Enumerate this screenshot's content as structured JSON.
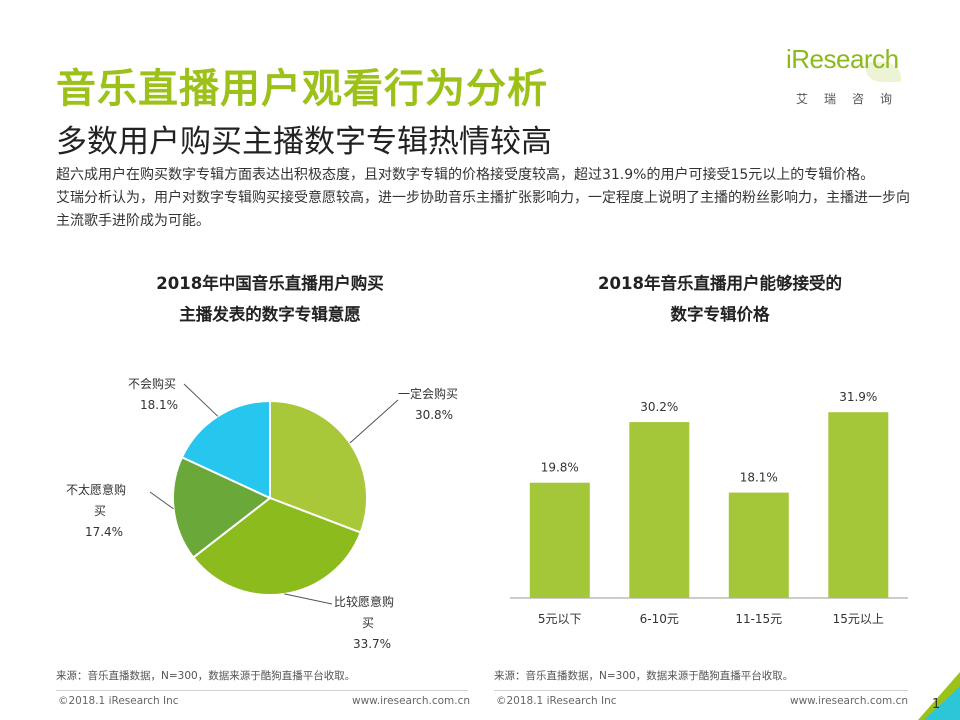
{
  "header": {
    "title": "音乐直播用户观看行为分析",
    "subtitle": "多数用户购买主播数字专辑热情较高"
  },
  "logo": {
    "word": "iResearch",
    "cn": "艾瑞咨询"
  },
  "description": {
    "p1": "超六成用户在购买数字专辑方面表达出积极态度，且对数字专辑的价格接受度较高，超过31.9%的用户可接受15元以上的专辑价格。",
    "p2": "艾瑞分析认为，用户对数字专辑购买接受意愿较高，进一步协助音乐主播扩张影响力，一定程度上说明了主播的粉丝影响力，主播进一步向主流歌手进阶成为可能。"
  },
  "colors": {
    "title_green": "#9cc21a",
    "bar_green": "#a4c73a",
    "pie_light_green": "#a8c83a",
    "pie_mid_green": "#8cbb1e",
    "pie_dark_green": "#6aa83a",
    "pie_cyan": "#26c6ee"
  },
  "chart_data": [
    {
      "type": "pie",
      "title_line1": "2018年中国音乐直播用户购买",
      "title_line2": "主播发表的数字专辑意愿",
      "slices": [
        {
          "label": "一定会购买",
          "label_lines": [
            "一定会购买"
          ],
          "value": 30.8,
          "value_label": "30.8%",
          "color": "#a8c83a"
        },
        {
          "label": "比较愿意购买",
          "label_lines": [
            "比较愿意购",
            "买"
          ],
          "value": 33.7,
          "value_label": "33.7%",
          "color": "#8cbb1e"
        },
        {
          "label": "不太愿意购买",
          "label_lines": [
            "不太愿意购",
            "买"
          ],
          "value": 17.4,
          "value_label": "17.4%",
          "color": "#6aa83a"
        },
        {
          "label": "不会购买",
          "label_lines": [
            "不会购买"
          ],
          "value": 18.1,
          "value_label": "18.1%",
          "color": "#26c6ee"
        }
      ]
    },
    {
      "type": "bar",
      "title_line1": "2018年音乐直播用户能够接受的",
      "title_line2": "数字专辑价格",
      "categories": [
        "5元以下",
        "6-10元",
        "11-15元",
        "15元以上"
      ],
      "values": [
        19.8,
        30.2,
        18.1,
        31.9
      ],
      "value_labels": [
        "19.8%",
        "30.2%",
        "18.1%",
        "31.9%"
      ],
      "ylim": [
        0,
        40
      ],
      "color": "#a4c73a"
    }
  ],
  "sources": {
    "left": "来源：音乐直播数据，N=300，数据来源于酷狗直播平台收取。",
    "right": "来源：音乐直播数据，N=300，数据来源于酷狗直播平台收取。"
  },
  "footer": {
    "copyright_left": "©2018.1 iResearch Inc",
    "url_left": "www.iresearch.com.cn",
    "copyright_right": "©2018.1 iResearch Inc",
    "url_right": "www.iresearch.com.cn",
    "page_number": "1"
  }
}
